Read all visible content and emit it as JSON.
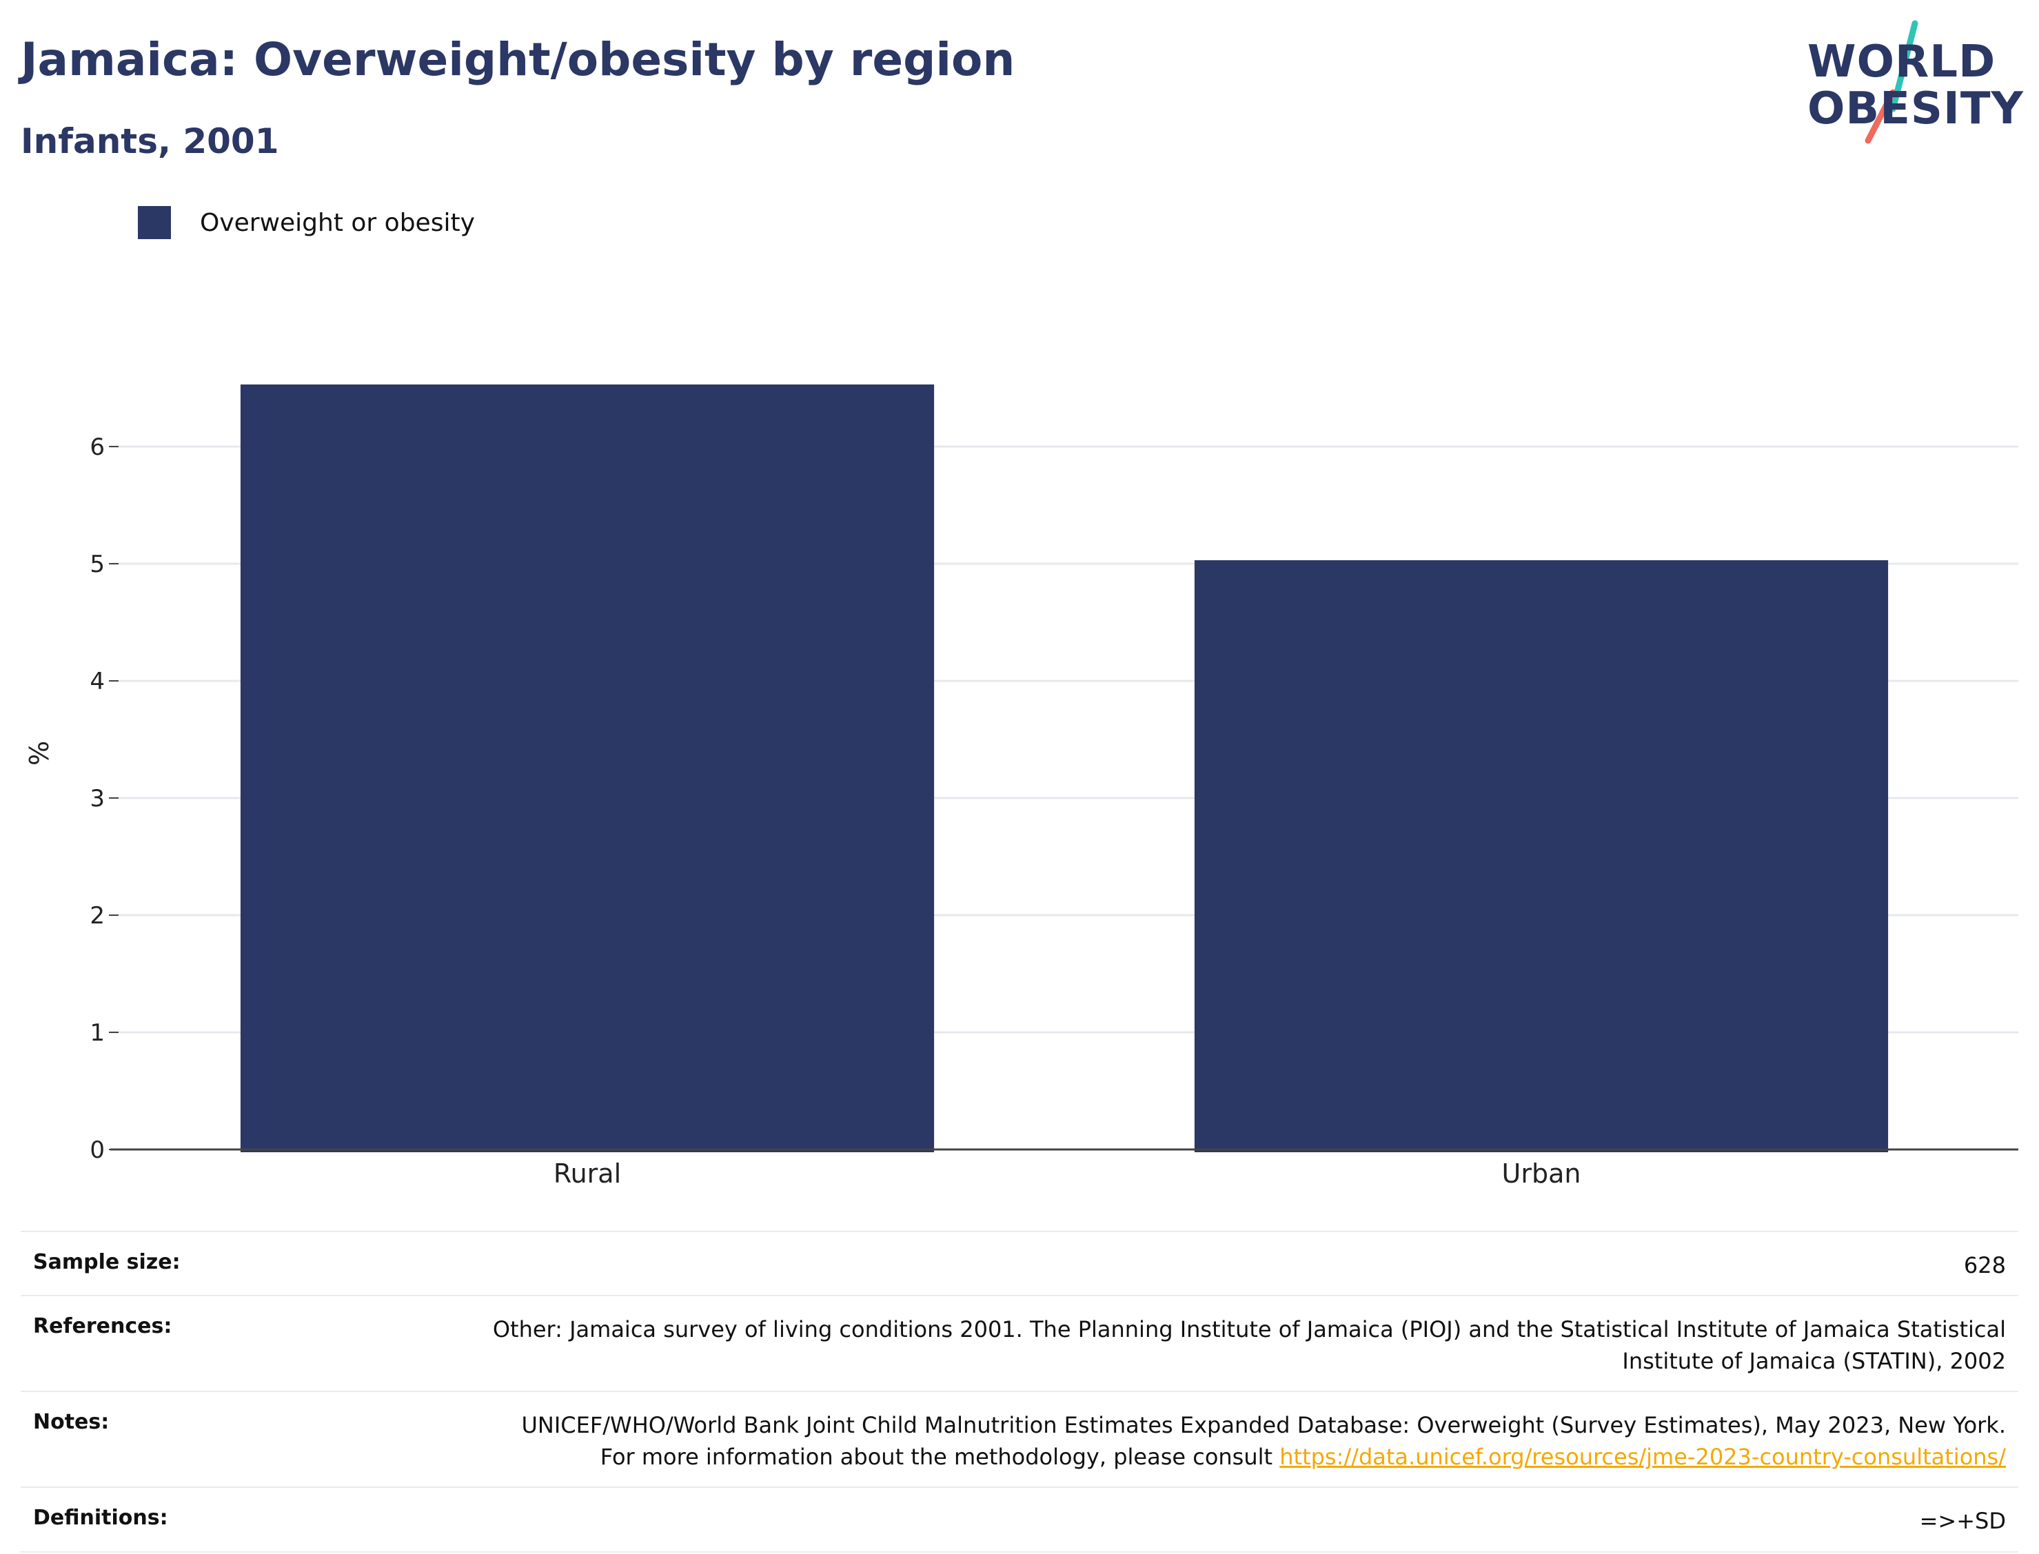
{
  "header": {
    "title": "Jamaica: Overweight/obesity by region",
    "subtitle": "Infants, 2001"
  },
  "logo": {
    "line1": "WORLD",
    "line2": "OBESITY",
    "colors": {
      "text": "#2b3764",
      "slash_top": "#2ec4b6",
      "slash_bottom": "#f06a5e"
    }
  },
  "chart_data": {
    "type": "bar",
    "categories": [
      "Rural",
      "Urban"
    ],
    "series": [
      {
        "name": "Overweight or obesity",
        "values": [
          6.53,
          5.03
        ],
        "color": "#2b3764"
      }
    ],
    "title": "Jamaica: Overweight/obesity by region",
    "subtitle": "Infants, 2001",
    "xlabel": "",
    "ylabel": "%",
    "ylim": [
      0,
      7
    ],
    "yticks": [
      0,
      1,
      2,
      3,
      4,
      5,
      6
    ],
    "grid": true,
    "legend_position": "top-left"
  },
  "info": {
    "rows": [
      {
        "label": "Sample size:",
        "value": "628"
      },
      {
        "label": "References:",
        "value": "Other: Jamaica survey of living conditions 2001. The Planning Institute of Jamaica (PIOJ) and the Statistical Institute of Jamaica Statistical Institute of Jamaica (STATIN), 2002"
      },
      {
        "label": "Notes:",
        "value": "UNICEF/WHO/World Bank Joint Child Malnutrition Estimates Expanded Database: Overweight (Survey Estimates), May 2023, New York. For more information about the methodology, please consult ",
        "link": "https://data.unicef.org/resources/jme-2023-country-consultations/"
      },
      {
        "label": "Definitions:",
        "value": "=>+SD"
      }
    ]
  }
}
